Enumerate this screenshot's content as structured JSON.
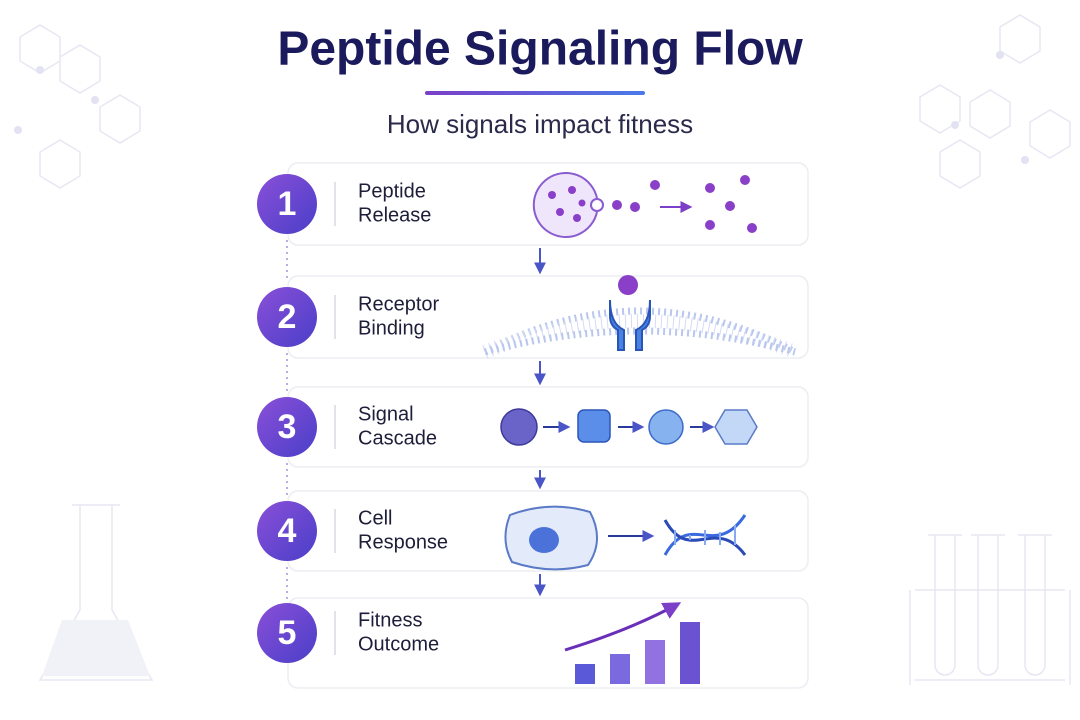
{
  "title": "Peptide Signaling Flow",
  "subtitle": "How signals impact fitness",
  "steps": [
    {
      "number": 1,
      "label": [
        "Peptide",
        "Release"
      ]
    },
    {
      "number": 2,
      "label": [
        "Receptor",
        "Binding"
      ]
    },
    {
      "number": 3,
      "label": [
        "Signal",
        "Cascade"
      ]
    },
    {
      "number": 4,
      "label": [
        "Cell",
        "Response"
      ]
    },
    {
      "number": 5,
      "label": [
        "Fitness",
        "Outcome"
      ]
    }
  ]
}
